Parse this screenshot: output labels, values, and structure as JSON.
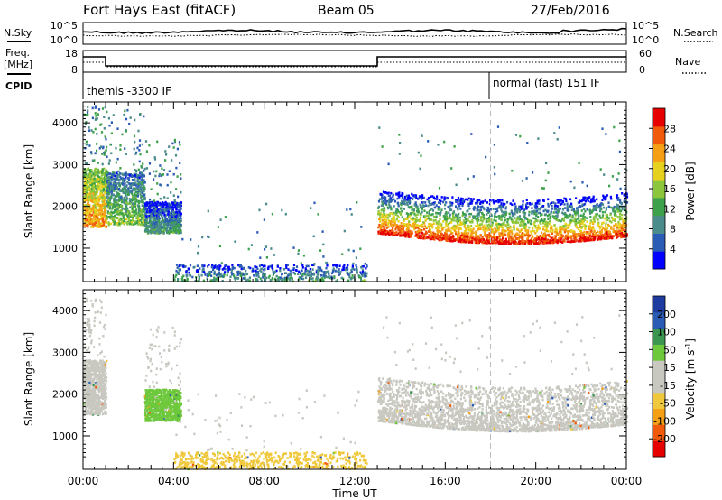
{
  "header": {
    "radar": "Fort Hays East (fitACF)",
    "beam": "Beam 05",
    "date": "27/Feb/2016"
  },
  "panels": {
    "nsky": {
      "left_label": "N.Sky",
      "right_label": "N.Search",
      "left_ticks": [
        "10^5",
        "10^0"
      ],
      "right_ticks": [
        "10^5",
        "10^0"
      ]
    },
    "freq": {
      "left_label_1": "Freq.",
      "left_label_2": "[MHz]",
      "right_label": "Nave",
      "left_ticks": [
        "18",
        "8"
      ],
      "right_ticks": [
        "60",
        "0"
      ]
    },
    "cpid": {
      "label": "CPID",
      "modes": [
        "themis -3300 IF",
        "normal (fast) 151 IF"
      ]
    }
  },
  "chart_data": [
    {
      "type": "heatmap",
      "xlabel": "Time UT",
      "ylabel": "Slant Range [km]",
      "x_ticks": [
        "00:00",
        "04:00",
        "08:00",
        "12:00",
        "16:00",
        "20:00",
        "00:00"
      ],
      "xlim": [
        0,
        24
      ],
      "ylim": [
        200,
        4500
      ],
      "y_ticks": [
        1000,
        2000,
        3000,
        4000
      ],
      "colorbar": {
        "label": "Power [dB]",
        "ticks": [
          "28",
          "24",
          "20",
          "16",
          "12",
          "8",
          "4"
        ],
        "range": [
          0,
          32
        ],
        "colors": [
          "#0000ff",
          "#2a5bb5",
          "#4a8c8c",
          "#3ca14a",
          "#8cc63c",
          "#e6d21e",
          "#f5a014",
          "#f05a0a",
          "#e60000"
        ]
      },
      "echo_regions": [
        {
          "t": [
            0.0,
            1.0
          ],
          "range_km": [
            1500,
            2900
          ],
          "power_db": 18
        },
        {
          "t": [
            1.0,
            2.7
          ],
          "range_km": [
            1550,
            2800
          ],
          "power_db": 10
        },
        {
          "t": [
            2.7,
            4.3
          ],
          "range_km": [
            1350,
            2100
          ],
          "power_db": 6
        },
        {
          "t": [
            4.0,
            12.5
          ],
          "range_km": [
            200,
            600
          ],
          "power_db": 6
        },
        {
          "t": [
            13.0,
            24.0
          ],
          "range_km": [
            1200,
            2400
          ],
          "power_db": 20
        }
      ]
    },
    {
      "type": "heatmap",
      "xlabel": "Time UT",
      "ylabel": "Slant Range [km]",
      "x_ticks": [
        "00:00",
        "04:00",
        "08:00",
        "12:00",
        "16:00",
        "20:00",
        "00:00"
      ],
      "xlim": [
        0,
        24
      ],
      "ylim": [
        200,
        4500
      ],
      "y_ticks": [
        1000,
        2000,
        3000,
        4000
      ],
      "colorbar": {
        "label": "Velocity [m s^-1]",
        "ticks": [
          "200",
          "100",
          "50",
          "15",
          "-15",
          "-50",
          "-100",
          "-200"
        ],
        "range": [
          -250,
          250
        ],
        "colors": [
          "#e60000",
          "#f05a0a",
          "#f5a014",
          "#f0c83c",
          "#c8c8c0",
          "#c8c8c0",
          "#6ec83c",
          "#3c9650",
          "#2a5bb5",
          "#1e3ca0"
        ]
      },
      "echo_regions": [
        {
          "t": [
            0.0,
            1.0
          ],
          "range_km": [
            1500,
            2800
          ],
          "velocity": 0
        },
        {
          "t": [
            2.7,
            4.3
          ],
          "range_km": [
            1350,
            2100
          ],
          "velocity": 60
        },
        {
          "t": [
            4.0,
            12.5
          ],
          "range_km": [
            200,
            600
          ],
          "velocity": -60
        },
        {
          "t": [
            13.0,
            24.0
          ],
          "range_km": [
            1200,
            2400
          ],
          "velocity": 0
        }
      ]
    }
  ],
  "vertical_marker_time": 18.0
}
